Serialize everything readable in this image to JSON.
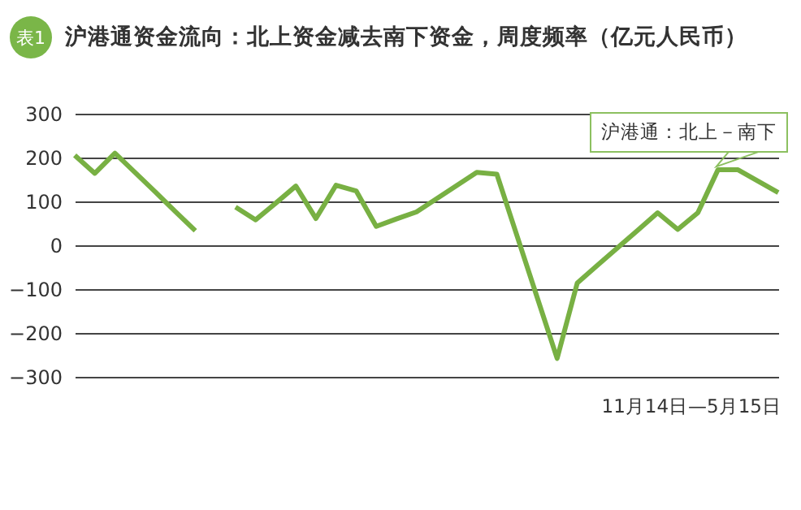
{
  "chart_data": {
    "type": "line",
    "title": "沪港通资金流向：北上资金减去南下资金，周度频率（亿元人民币）",
    "annotations": [
      "表1",
      "11月14日—5月15日"
    ],
    "categories": [
      null,
      null,
      null,
      null,
      null,
      null,
      null,
      null,
      null,
      null,
      null,
      null,
      null,
      null,
      null,
      null,
      null,
      null,
      null,
      null,
      null,
      null,
      null,
      null,
      null,
      null,
      null,
      null,
      null,
      null,
      null,
      null,
      null,
      null,
      null,
      null
    ],
    "series": [
      {
        "color": "#78b043",
        "values": [
          205,
          164,
          210,
          166,
          122,
          77,
          33,
          null,
          null,
          null,
          null,
          null,
          null,
          null,
          null,
          null,
          null,
          null,
          null,
          null,
          null,
          null,
          null,
          null,
          null,
          null,
          null,
          null,
          null,
          null,
          null,
          null,
          null,
          null,
          null,
          null
        ]
      },
      {
        "name": "沪港通：北上－南下",
        "color": "#78b043",
        "values": [
          null,
          null,
          null,
          null,
          null,
          null,
          null,
          null,
          87,
          58,
          96,
          135,
          61,
          137,
          124,
          43,
          60,
          76,
          106,
          136,
          166,
          162,
          22,
          -118,
          -258,
          -86,
          -46,
          -6,
          34,
          74,
          36,
          74,
          172,
          172,
          146,
          120
        ]
      }
    ],
    "ylim": [
      -300,
      300
    ],
    "yticks": [
      -300,
      -200,
      -100,
      0,
      100,
      200,
      300
    ],
    "grid": "y",
    "line_style": "solid",
    "marker": "none"
  }
}
